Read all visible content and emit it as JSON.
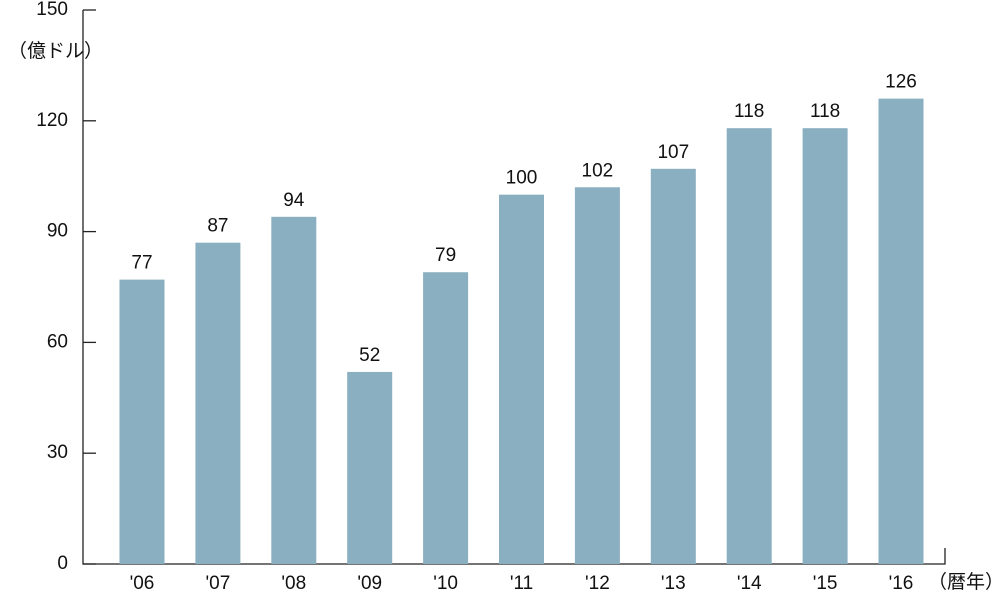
{
  "chart_data": {
    "type": "bar",
    "y_label": "（億ドル）",
    "x_label": "（暦年）",
    "categories": [
      "'06",
      "'07",
      "'08",
      "'09",
      "'10",
      "'11",
      "'12",
      "'13",
      "'14",
      "'15",
      "'16"
    ],
    "values": [
      77,
      87,
      94,
      52,
      79,
      100,
      102,
      107,
      118,
      118,
      126
    ],
    "color": "#8aafc0",
    "ylim": [
      0,
      150
    ],
    "yticks": [
      0,
      30,
      60,
      90,
      120,
      150
    ]
  }
}
